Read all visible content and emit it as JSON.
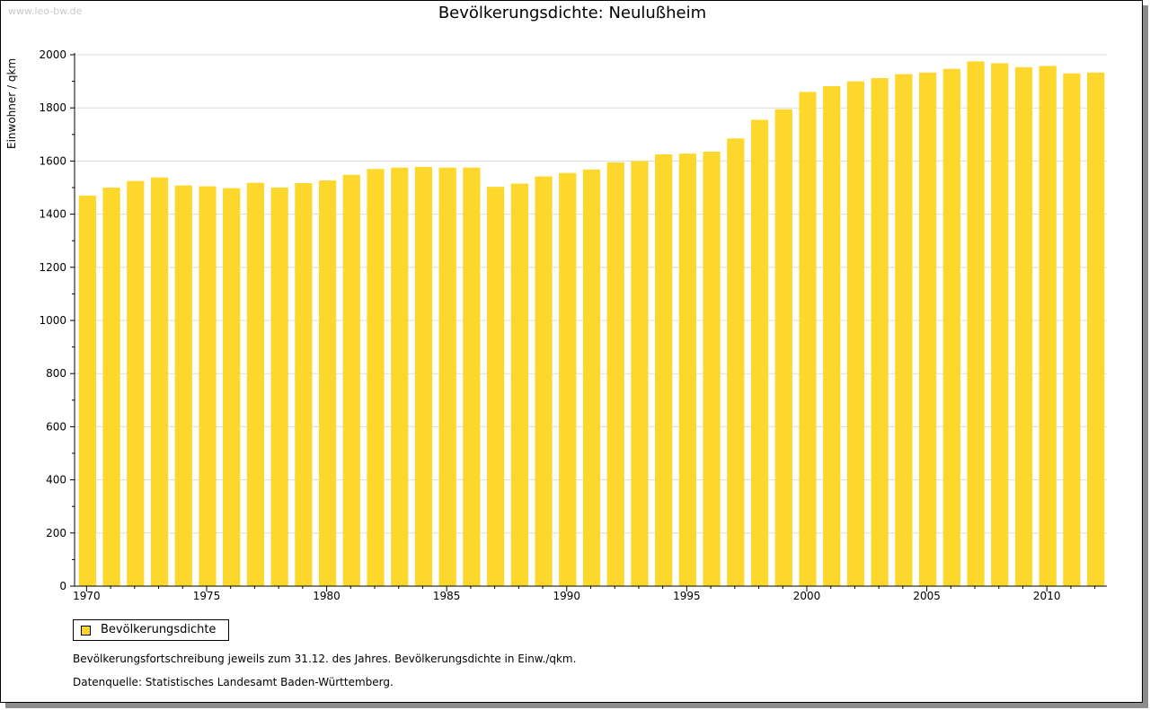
{
  "watermark": "www.leo-bw.de",
  "legend": {
    "label": "Bevölkerungsdichte",
    "color": "#fdd72b"
  },
  "notes": {
    "line1": "Bevölkerungsfortschreibung jeweils zum 31.12. des Jahres. Bevölkerungsdichte in Einw./qkm.",
    "line2": "Datenquelle: Statistisches Landesamt Baden-Württemberg."
  },
  "chart_data": {
    "type": "bar",
    "title": "Bevölkerungsdichte: Neulußheim",
    "xlabel": "",
    "ylabel": "Einwohner / qkm",
    "ylim": [
      0,
      2000
    ],
    "yticks": [
      0,
      200,
      400,
      600,
      800,
      1000,
      1200,
      1400,
      1600,
      1800,
      2000
    ],
    "xtick_labels": [
      "1970",
      "1975",
      "1980",
      "1985",
      "1990",
      "1995",
      "2000",
      "2005",
      "2010"
    ],
    "grid": true,
    "legend_position": "bottom-left",
    "categories": [
      1970,
      1971,
      1972,
      1973,
      1974,
      1975,
      1976,
      1977,
      1978,
      1979,
      1980,
      1981,
      1982,
      1983,
      1984,
      1985,
      1986,
      1987,
      1988,
      1989,
      1990,
      1991,
      1992,
      1993,
      1994,
      1995,
      1996,
      1997,
      1998,
      1999,
      2000,
      2001,
      2002,
      2003,
      2004,
      2005,
      2006,
      2007,
      2008,
      2009,
      2010,
      2011,
      2012
    ],
    "series": [
      {
        "name": "Bevölkerungsdichte",
        "color": "#fdd72b",
        "values": [
          1470,
          1500,
          1525,
          1538,
          1508,
          1505,
          1498,
          1518,
          1500,
          1517,
          1527,
          1548,
          1570,
          1575,
          1578,
          1575,
          1575,
          1503,
          1515,
          1542,
          1555,
          1568,
          1595,
          1600,
          1625,
          1628,
          1635,
          1685,
          1755,
          1795,
          1860,
          1882,
          1900,
          1912,
          1927,
          1933,
          1947,
          1975,
          1968,
          1953,
          1958,
          1930,
          1933
        ]
      }
    ]
  }
}
